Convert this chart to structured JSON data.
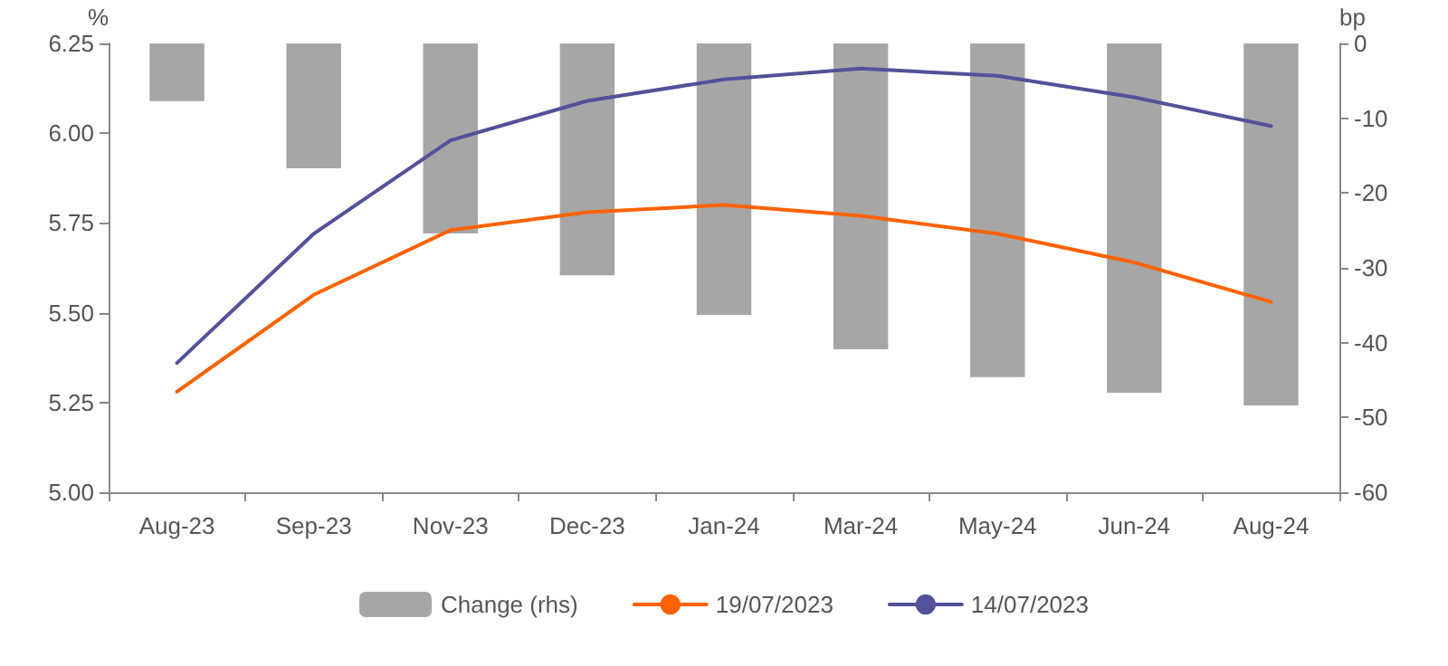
{
  "chart_data": {
    "type": "line",
    "ylabel": "%",
    "y2label": "bp",
    "categories": [
      "Aug-23",
      "Sep-23",
      "Nov-23",
      "Dec-23",
      "Jan-24",
      "Mar-24",
      "May-24",
      "Jun-24",
      "Aug-24"
    ],
    "series": [
      {
        "name": "Change (rhs)",
        "type": "bar",
        "axis": "y2",
        "color": "#a6a6a6",
        "values": [
          -7.7,
          -16.7,
          -25.4,
          -31,
          -36.3,
          -40.9,
          -44.6,
          -46.7,
          -48.4
        ]
      },
      {
        "name": "19/07/2023",
        "color": "#ff6200",
        "values": [
          5.28,
          5.55,
          5.73,
          5.78,
          5.8,
          5.77,
          5.72,
          5.64,
          5.53
        ]
      },
      {
        "name": "14/07/2023",
        "color": "#525199",
        "values": [
          5.36,
          5.72,
          5.98,
          6.09,
          6.15,
          6.18,
          6.16,
          6.1,
          6.02
        ]
      }
    ],
    "ylim": [
      5,
      6.25
    ],
    "yticks": [
      {
        "value": 5,
        "label": "5.00"
      },
      {
        "value": 5.25,
        "label": "5.25"
      },
      {
        "value": 5.5,
        "label": "5.50"
      },
      {
        "value": 5.75,
        "label": "5.75"
      },
      {
        "value": 6,
        "label": "6.00"
      },
      {
        "value": 6.25,
        "label": "6.25"
      }
    ],
    "y2lim": [
      -60,
      0
    ],
    "y2ticks": [
      -60,
      -50,
      -40,
      -30,
      -20,
      -10,
      0
    ],
    "grid": false,
    "legend": "bottom",
    "marker": "none",
    "line_style": "solid"
  }
}
